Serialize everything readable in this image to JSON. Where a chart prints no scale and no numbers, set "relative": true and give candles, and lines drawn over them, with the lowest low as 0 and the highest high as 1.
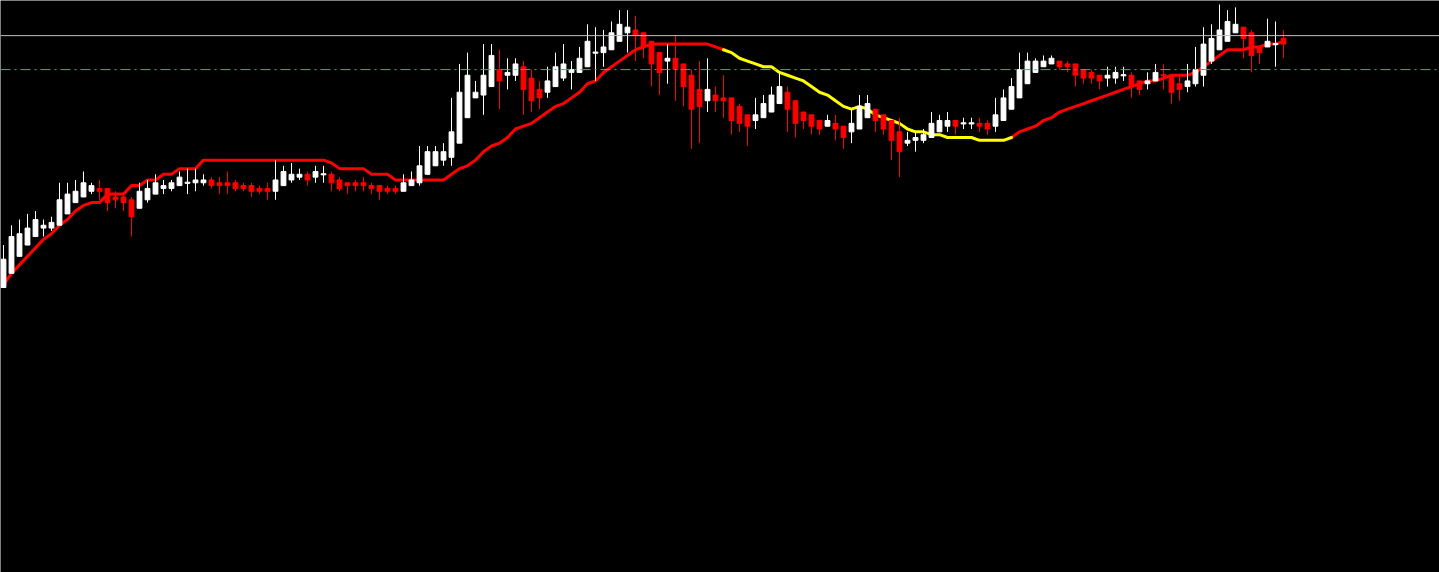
{
  "chart_data": {
    "type": "candlestick",
    "relative": true,
    "categories": [
      null,
      null,
      null,
      null,
      null,
      null,
      null,
      null,
      null,
      null,
      null,
      null,
      null,
      null,
      null,
      null,
      null,
      null,
      null,
      null,
      null,
      null,
      null,
      null,
      null,
      null,
      null,
      null,
      null,
      null,
      null,
      null,
      null,
      null,
      null,
      null,
      null,
      null,
      null,
      null,
      null,
      null,
      null,
      null,
      null,
      null,
      null,
      null,
      null,
      null,
      null,
      null,
      null,
      null,
      null,
      null,
      null,
      null,
      null,
      null,
      null,
      null,
      null,
      null,
      null,
      null,
      null,
      null,
      null,
      null,
      null,
      null,
      null,
      null,
      null,
      null,
      null,
      null,
      null,
      null,
      null,
      null,
      null,
      null,
      null,
      null,
      null,
      null,
      null,
      null,
      null,
      null,
      null,
      null,
      null,
      null,
      null,
      null,
      null,
      null,
      null,
      null,
      null,
      null,
      null,
      null,
      null,
      null,
      null,
      null,
      null,
      null,
      null,
      null,
      null,
      null,
      null,
      null,
      null,
      null,
      null,
      null,
      null,
      null,
      null,
      null,
      null,
      null,
      null,
      null,
      null,
      null,
      null,
      null,
      null,
      null,
      null,
      null,
      null,
      null,
      null,
      null,
      null,
      null,
      null,
      null,
      null,
      null,
      null,
      null,
      null,
      null,
      null,
      null,
      null,
      null,
      null,
      null,
      null,
      null,
      null
    ],
    "ohlc": [
      [
        0.0,
        0.15,
        0.0,
        0.1
      ],
      [
        0.05,
        0.22,
        0.05,
        0.18
      ],
      [
        0.11,
        0.24,
        0.11,
        0.19
      ],
      [
        0.15,
        0.26,
        0.15,
        0.21
      ],
      [
        0.18,
        0.27,
        0.18,
        0.24
      ],
      [
        0.21,
        0.24,
        0.18,
        0.22
      ],
      [
        0.21,
        0.25,
        0.2,
        0.23
      ],
      [
        0.22,
        0.37,
        0.22,
        0.31
      ],
      [
        0.26,
        0.37,
        0.26,
        0.33
      ],
      [
        0.3,
        0.38,
        0.3,
        0.34
      ],
      [
        0.32,
        0.41,
        0.32,
        0.37
      ],
      [
        0.34,
        0.37,
        0.33,
        0.36
      ],
      [
        0.35,
        0.38,
        0.31,
        0.34
      ],
      [
        0.35,
        0.35,
        0.27,
        0.3
      ],
      [
        0.32,
        0.34,
        0.28,
        0.31
      ],
      [
        0.32,
        0.33,
        0.27,
        0.3
      ],
      [
        0.31,
        0.32,
        0.18,
        0.25
      ],
      [
        0.28,
        0.37,
        0.28,
        0.34
      ],
      [
        0.31,
        0.38,
        0.3,
        0.35
      ],
      [
        0.33,
        0.4,
        0.33,
        0.37
      ],
      [
        0.35,
        0.38,
        0.33,
        0.36
      ],
      [
        0.35,
        0.38,
        0.34,
        0.37
      ],
      [
        0.36,
        0.41,
        0.36,
        0.39
      ],
      [
        0.37,
        0.42,
        0.33,
        0.37
      ],
      [
        0.37,
        0.42,
        0.34,
        0.38
      ],
      [
        0.37,
        0.4,
        0.36,
        0.38
      ],
      [
        0.38,
        0.39,
        0.35,
        0.36
      ],
      [
        0.37,
        0.39,
        0.33,
        0.36
      ],
      [
        0.37,
        0.41,
        0.33,
        0.36
      ],
      [
        0.37,
        0.38,
        0.34,
        0.35
      ],
      [
        0.36,
        0.37,
        0.34,
        0.35
      ],
      [
        0.36,
        0.37,
        0.32,
        0.34
      ],
      [
        0.35,
        0.36,
        0.33,
        0.34
      ],
      [
        0.35,
        0.37,
        0.31,
        0.34
      ],
      [
        0.34,
        0.45,
        0.31,
        0.38
      ],
      [
        0.36,
        0.43,
        0.36,
        0.41
      ],
      [
        0.38,
        0.44,
        0.37,
        0.4
      ],
      [
        0.39,
        0.42,
        0.38,
        0.4
      ],
      [
        0.4,
        0.41,
        0.36,
        0.38
      ],
      [
        0.39,
        0.43,
        0.37,
        0.41
      ],
      [
        0.4,
        0.43,
        0.37,
        0.4
      ],
      [
        0.4,
        0.41,
        0.34,
        0.37
      ],
      [
        0.38,
        0.39,
        0.34,
        0.35
      ],
      [
        0.37,
        0.37,
        0.33,
        0.36
      ],
      [
        0.37,
        0.38,
        0.34,
        0.36
      ],
      [
        0.37,
        0.39,
        0.34,
        0.36
      ],
      [
        0.36,
        0.37,
        0.33,
        0.35
      ],
      [
        0.36,
        0.36,
        0.31,
        0.34
      ],
      [
        0.35,
        0.36,
        0.33,
        0.34
      ],
      [
        0.35,
        0.36,
        0.33,
        0.34
      ],
      [
        0.34,
        0.4,
        0.34,
        0.37
      ],
      [
        0.36,
        0.41,
        0.36,
        0.38
      ],
      [
        0.37,
        0.5,
        0.36,
        0.43
      ],
      [
        0.4,
        0.5,
        0.4,
        0.48
      ],
      [
        0.43,
        0.5,
        0.43,
        0.48
      ],
      [
        0.45,
        0.51,
        0.43,
        0.48
      ],
      [
        0.46,
        0.67,
        0.43,
        0.55
      ],
      [
        0.51,
        0.79,
        0.51,
        0.69
      ],
      [
        0.6,
        0.83,
        0.6,
        0.75
      ],
      [
        0.67,
        0.73,
        0.67,
        0.69
      ],
      [
        0.68,
        0.86,
        0.61,
        0.75
      ],
      [
        0.71,
        0.86,
        0.71,
        0.82
      ],
      [
        0.77,
        0.84,
        0.63,
        0.73
      ],
      [
        0.75,
        0.81,
        0.7,
        0.76
      ],
      [
        0.75,
        0.81,
        0.73,
        0.79
      ],
      [
        0.78,
        0.8,
        0.61,
        0.7
      ],
      [
        0.74,
        0.77,
        0.62,
        0.66
      ],
      [
        0.7,
        0.73,
        0.63,
        0.67
      ],
      [
        0.69,
        0.78,
        0.67,
        0.73
      ],
      [
        0.71,
        0.83,
        0.71,
        0.78
      ],
      [
        0.74,
        0.86,
        0.73,
        0.79
      ],
      [
        0.76,
        0.8,
        0.7,
        0.77
      ],
      [
        0.76,
        0.85,
        0.76,
        0.81
      ],
      [
        0.78,
        0.93,
        0.78,
        0.87
      ],
      [
        0.83,
        0.92,
        0.73,
        0.83
      ],
      [
        0.83,
        0.91,
        0.78,
        0.85
      ],
      [
        0.84,
        0.94,
        0.84,
        0.9
      ],
      [
        0.87,
        0.98,
        0.87,
        0.93
      ],
      [
        0.9,
        0.98,
        0.83,
        0.92
      ],
      [
        0.91,
        0.96,
        0.8,
        0.89
      ],
      [
        0.9,
        0.9,
        0.81,
        0.85
      ],
      [
        0.87,
        0.87,
        0.71,
        0.79
      ],
      [
        0.83,
        0.83,
        0.68,
        0.76
      ],
      [
        0.8,
        0.86,
        0.72,
        0.81
      ],
      [
        0.81,
        0.89,
        0.66,
        0.77
      ],
      [
        0.79,
        0.79,
        0.64,
        0.71
      ],
      [
        0.75,
        0.77,
        0.49,
        0.63
      ],
      [
        0.7,
        0.8,
        0.51,
        0.64
      ],
      [
        0.66,
        0.81,
        0.62,
        0.7
      ],
      [
        0.68,
        0.71,
        0.62,
        0.66
      ],
      [
        0.67,
        0.75,
        0.6,
        0.66
      ],
      [
        0.67,
        0.67,
        0.54,
        0.59
      ],
      [
        0.64,
        0.65,
        0.55,
        0.58
      ],
      [
        0.61,
        0.61,
        0.5,
        0.57
      ],
      [
        0.59,
        0.67,
        0.56,
        0.61
      ],
      [
        0.6,
        0.68,
        0.6,
        0.65
      ],
      [
        0.62,
        0.71,
        0.62,
        0.68
      ],
      [
        0.65,
        0.76,
        0.65,
        0.71
      ],
      [
        0.69,
        0.71,
        0.55,
        0.63
      ],
      [
        0.66,
        0.66,
        0.53,
        0.58
      ],
      [
        0.62,
        0.62,
        0.56,
        0.59
      ],
      [
        0.61,
        0.61,
        0.54,
        0.57
      ],
      [
        0.59,
        0.59,
        0.54,
        0.56
      ],
      [
        0.57,
        0.61,
        0.57,
        0.59
      ],
      [
        0.58,
        0.61,
        0.52,
        0.56
      ],
      [
        0.57,
        0.57,
        0.49,
        0.53
      ],
      [
        0.55,
        0.63,
        0.51,
        0.58
      ],
      [
        0.56,
        0.68,
        0.56,
        0.64
      ],
      [
        0.6,
        0.68,
        0.6,
        0.65
      ],
      [
        0.63,
        0.63,
        0.55,
        0.59
      ],
      [
        0.61,
        0.61,
        0.54,
        0.56
      ],
      [
        0.59,
        0.59,
        0.45,
        0.52
      ],
      [
        0.55,
        0.6,
        0.39,
        0.48
      ],
      [
        0.51,
        0.55,
        0.5,
        0.52
      ],
      [
        0.52,
        0.55,
        0.48,
        0.53
      ],
      [
        0.52,
        0.56,
        0.51,
        0.54
      ],
      [
        0.53,
        0.62,
        0.53,
        0.58
      ],
      [
        0.55,
        0.61,
        0.55,
        0.59
      ],
      [
        0.57,
        0.62,
        0.55,
        0.59
      ],
      [
        0.59,
        0.59,
        0.54,
        0.57
      ],
      [
        0.58,
        0.6,
        0.56,
        0.58
      ],
      [
        0.58,
        0.6,
        0.56,
        0.58
      ],
      [
        0.58,
        0.6,
        0.55,
        0.57
      ],
      [
        0.58,
        0.59,
        0.54,
        0.56
      ],
      [
        0.57,
        0.67,
        0.55,
        0.61
      ],
      [
        0.59,
        0.7,
        0.59,
        0.67
      ],
      [
        0.63,
        0.74,
        0.63,
        0.71
      ],
      [
        0.67,
        0.83,
        0.67,
        0.77
      ],
      [
        0.72,
        0.83,
        0.72,
        0.8
      ],
      [
        0.76,
        0.81,
        0.76,
        0.8
      ],
      [
        0.78,
        0.82,
        0.78,
        0.8
      ],
      [
        0.79,
        0.82,
        0.79,
        0.81
      ],
      [
        0.8,
        0.8,
        0.77,
        0.78
      ],
      [
        0.79,
        0.8,
        0.76,
        0.78
      ],
      [
        0.79,
        0.79,
        0.71,
        0.75
      ],
      [
        0.77,
        0.77,
        0.72,
        0.74
      ],
      [
        0.76,
        0.77,
        0.72,
        0.74
      ],
      [
        0.75,
        0.75,
        0.7,
        0.73
      ],
      [
        0.74,
        0.78,
        0.71,
        0.75
      ],
      [
        0.74,
        0.78,
        0.72,
        0.76
      ],
      [
        0.75,
        0.78,
        0.73,
        0.75
      ],
      [
        0.75,
        0.76,
        0.67,
        0.71
      ],
      [
        0.73,
        0.73,
        0.68,
        0.7
      ],
      [
        0.72,
        0.76,
        0.7,
        0.73
      ],
      [
        0.73,
        0.79,
        0.73,
        0.76
      ],
      [
        0.75,
        0.79,
        0.7,
        0.75
      ],
      [
        0.75,
        0.75,
        0.65,
        0.69
      ],
      [
        0.72,
        0.75,
        0.66,
        0.7
      ],
      [
        0.71,
        0.79,
        0.69,
        0.73
      ],
      [
        0.72,
        0.85,
        0.71,
        0.77
      ],
      [
        0.75,
        0.92,
        0.71,
        0.86
      ],
      [
        0.8,
        0.93,
        0.79,
        0.88
      ],
      [
        0.84,
        1.0,
        0.84,
        0.91
      ],
      [
        0.87,
        0.98,
        0.87,
        0.94
      ],
      [
        0.9,
        0.99,
        0.9,
        0.93
      ],
      [
        0.92,
        0.92,
        0.81,
        0.88
      ],
      [
        0.9,
        0.91,
        0.76,
        0.82
      ],
      [
        0.85,
        0.85,
        0.79,
        0.83
      ],
      [
        0.85,
        0.95,
        0.85,
        0.87
      ],
      [
        0.86,
        0.94,
        0.78,
        0.86
      ],
      [
        0.88,
        0.91,
        0.81,
        0.86
      ]
    ],
    "colors": [
      "#ffffff",
      "#ffffff",
      "#ffffff",
      "#ffffff",
      "#ffffff",
      "#ffffff",
      "#ffffff",
      "#ffffff",
      "#ffffff",
      "#ffffff",
      "#ffffff",
      "#ffffff",
      "#ff0000",
      "#ff0000",
      "#ff0000",
      "#ff0000",
      "#ff0000",
      "#ffffff",
      "#ffffff",
      "#ffffff",
      "#ffffff",
      "#ffffff",
      "#ffffff",
      "#ffffff",
      "#ffffff",
      "#ffffff",
      "#ff0000",
      "#ff0000",
      "#ff0000",
      "#ff0000",
      "#ff0000",
      "#ff0000",
      "#ff0000",
      "#ff0000",
      "#ffffff",
      "#ffffff",
      "#ffffff",
      "#ffffff",
      "#ff0000",
      "#ffffff",
      "#ffffff",
      "#ff0000",
      "#ff0000",
      "#ff0000",
      "#ff0000",
      "#ff0000",
      "#ff0000",
      "#ff0000",
      "#ff0000",
      "#ff0000",
      "#ffffff",
      "#ffffff",
      "#ffffff",
      "#ffffff",
      "#ffffff",
      "#ffffff",
      "#ffffff",
      "#ffffff",
      "#ffffff",
      "#ffffff",
      "#ffffff",
      "#ffffff",
      "#ff0000",
      "#ffffff",
      "#ffffff",
      "#ff0000",
      "#ff0000",
      "#ff0000",
      "#ffffff",
      "#ffffff",
      "#ffffff",
      "#ffffff",
      "#ffffff",
      "#ffffff",
      "#ffffff",
      "#ffffff",
      "#ffffff",
      "#ffffff",
      "#ffffff",
      "#ff0000",
      "#ff0000",
      "#ff0000",
      "#ff0000",
      "#ffffff",
      "#ff0000",
      "#ff0000",
      "#ff0000",
      "#ff0000",
      "#ffffff",
      "#ff0000",
      "#ff0000",
      "#ff0000",
      "#ff0000",
      "#ff0000",
      "#ffffff",
      "#ffffff",
      "#ffffff",
      "#ffffff",
      "#ff0000",
      "#ff0000",
      "#ff0000",
      "#ff0000",
      "#ff0000",
      "#ffffff",
      "#ff0000",
      "#ff0000",
      "#ffffff",
      "#ffffff",
      "#ffffff",
      "#ff0000",
      "#ff0000",
      "#ff0000",
      "#ff0000",
      "#ffffff",
      "#ffffff",
      "#ffffff",
      "#ffffff",
      "#ffffff",
      "#ffffff",
      "#ff0000",
      "#ffffff",
      "#ffffff",
      "#ff0000",
      "#ff0000",
      "#ffffff",
      "#ffffff",
      "#ffffff",
      "#ffffff",
      "#ffffff",
      "#ffffff",
      "#ffffff",
      "#ffffff",
      "#ff0000",
      "#ff0000",
      "#ff0000",
      "#ff0000",
      "#ff0000",
      "#ff0000",
      "#ffffff",
      "#ffffff",
      "#ffffff",
      "#ff0000",
      "#ff0000",
      "#ffffff",
      "#ffffff",
      "#ff0000",
      "#ff0000",
      "#ff0000",
      "#ffffff",
      "#ffffff",
      "#ffffff",
      "#ffffff",
      "#ffffff",
      "#ffffff",
      "#ffffff",
      "#ff0000",
      "#ff0000",
      "#ff0000",
      "#ffffff",
      "#ffffff",
      "#ff0000"
    ],
    "series": [
      {
        "type": "line",
        "color": "#ff0000",
        "values": [
          0.01,
          0.05,
          0.08,
          0.11,
          0.14,
          0.17,
          0.19,
          0.22,
          0.24,
          0.27,
          0.29,
          0.3,
          0.3,
          0.33,
          0.33,
          0.33,
          0.36,
          0.36,
          0.38,
          0.38,
          0.4,
          0.4,
          0.42,
          0.42,
          0.42,
          0.45,
          0.45,
          0.45,
          0.45,
          0.45,
          0.45,
          0.45,
          0.45,
          0.45,
          0.45,
          0.45,
          0.45,
          0.45,
          0.45,
          0.45,
          0.45,
          0.44,
          0.42,
          0.42,
          0.42,
          0.42,
          0.4,
          0.4,
          0.4,
          0.38,
          0.38,
          0.38,
          0.38,
          0.38,
          0.38,
          0.38,
          0.4,
          0.42,
          0.43,
          0.45,
          0.48,
          0.5,
          0.51,
          0.53,
          0.56,
          0.57,
          0.58,
          0.6,
          0.62,
          0.64,
          0.65,
          0.67,
          0.69,
          0.72,
          0.73,
          0.76,
          0.78,
          0.8,
          0.82,
          0.84,
          0.85,
          0.86,
          0.86,
          0.86,
          0.86,
          0.86,
          0.86,
          0.86,
          0.86,
          0.85,
          0.84,
          null,
          null,
          null,
          null,
          null,
          null,
          null,
          null,
          null,
          null,
          null,
          null,
          null,
          null,
          null,
          null,
          null,
          null,
          null,
          null,
          null,
          null,
          null,
          null,
          null,
          null,
          null,
          null,
          null,
          null,
          null,
          null,
          null,
          null,
          null,
          0.53,
          0.55,
          0.56,
          0.57,
          0.59,
          0.6,
          0.62,
          0.63,
          0.64,
          0.65,
          0.66,
          0.67,
          0.68,
          0.69,
          0.7,
          0.71,
          0.72,
          0.73,
          0.73,
          0.74,
          0.75,
          0.75,
          0.75,
          0.76,
          0.78,
          0.8,
          0.82,
          0.84,
          0.84,
          0.84,
          0.85,
          0.85,
          0.86,
          0.86,
          0.87
        ]
      },
      {
        "type": "line",
        "color": "#ffff00",
        "values": [
          null,
          null,
          null,
          null,
          null,
          null,
          null,
          null,
          null,
          null,
          null,
          null,
          null,
          null,
          null,
          null,
          null,
          null,
          null,
          null,
          null,
          null,
          null,
          null,
          null,
          null,
          null,
          null,
          null,
          null,
          null,
          null,
          null,
          null,
          null,
          null,
          null,
          null,
          null,
          null,
          null,
          null,
          null,
          null,
          null,
          null,
          null,
          null,
          null,
          null,
          null,
          null,
          null,
          null,
          null,
          null,
          null,
          null,
          null,
          null,
          null,
          null,
          null,
          null,
          null,
          null,
          null,
          null,
          null,
          null,
          null,
          null,
          null,
          null,
          null,
          null,
          null,
          null,
          null,
          null,
          null,
          null,
          null,
          null,
          null,
          null,
          null,
          null,
          null,
          null,
          0.84,
          0.83,
          0.81,
          0.8,
          0.79,
          0.78,
          0.78,
          0.76,
          0.75,
          0.74,
          0.73,
          0.71,
          0.69,
          0.68,
          0.66,
          0.64,
          0.63,
          0.64,
          0.63,
          0.61,
          0.6,
          0.59,
          0.58,
          0.56,
          0.55,
          0.55,
          0.54,
          0.54,
          0.53,
          0.53,
          0.53,
          0.53,
          0.52,
          0.52,
          0.52,
          0.52,
          0.53,
          null,
          null,
          null,
          null,
          null,
          null,
          null,
          null,
          null,
          null,
          null,
          null,
          null,
          null,
          null,
          null,
          null,
          null,
          null,
          null,
          null,
          null,
          null,
          null,
          null,
          null,
          null,
          null,
          null,
          null,
          null,
          null,
          null,
          null
        ]
      }
    ],
    "ref_lines": [
      {
        "axis": "y",
        "value": 0.89,
        "color": "#c0c0c0",
        "line_style": "solid"
      },
      {
        "axis": "y",
        "value": 0.77,
        "color": "#5f9f6f",
        "line_style": "dashed"
      }
    ]
  }
}
